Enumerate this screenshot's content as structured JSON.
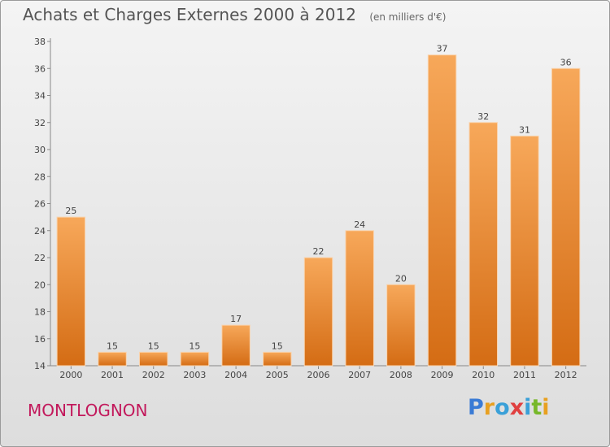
{
  "title": "Achats et Charges Externes 2000 à 2012",
  "unit": "(en milliers d'€)",
  "city": "MONTLOGNON",
  "logo": {
    "letters": [
      "P",
      "r",
      "o",
      "x",
      "i",
      "t",
      "i"
    ],
    "colors": [
      "#3a7bd5",
      "#e8a020",
      "#3aa0d8",
      "#e04040",
      "#3aa0d8",
      "#77b82a",
      "#e8a020"
    ]
  },
  "colors": {
    "bar_top": "#f7a85a",
    "bar_bottom": "#d46c14",
    "axis": "#888888",
    "text": "#444444"
  },
  "chart_data": {
    "type": "bar",
    "categories": [
      "2000",
      "2001",
      "2002",
      "2003",
      "2004",
      "2005",
      "2006",
      "2007",
      "2008",
      "2009",
      "2010",
      "2011",
      "2012"
    ],
    "values": [
      25,
      15,
      15,
      15,
      17,
      15,
      22,
      24,
      20,
      37,
      32,
      31,
      36
    ],
    "ylim": [
      14,
      38
    ],
    "yticks": [
      14,
      16,
      18,
      20,
      22,
      24,
      26,
      28,
      30,
      32,
      34,
      36,
      38
    ],
    "grid": false,
    "legend": false
  }
}
